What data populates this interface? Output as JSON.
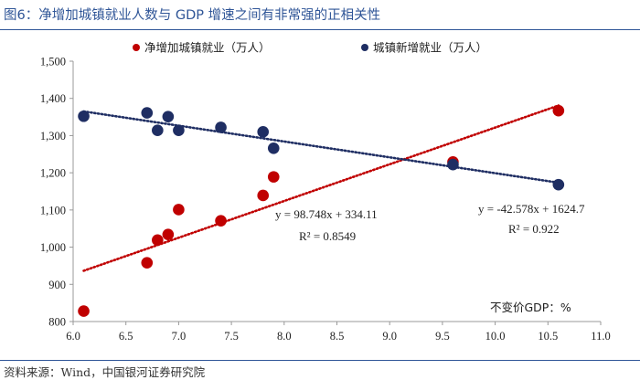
{
  "title": "图6：净增加城镇就业人数与 GDP 增速之间有非常强的正相关性",
  "source": "资料来源：Wind，中国银河证券研究院",
  "chart_data": {
    "type": "scatter",
    "title": "图6：净增加城镇就业人数与 GDP 增速之间有非常强的正相关性",
    "xlabel": "",
    "ylabel": "",
    "xlim": [
      6.0,
      11.0
    ],
    "ylim": [
      800,
      1500
    ],
    "x_ticks": [
      "6.0",
      "6.5",
      "7.0",
      "7.5",
      "8.0",
      "8.5",
      "9.0",
      "9.5",
      "10.0",
      "10.5",
      "11.0"
    ],
    "x_tick_values": [
      6.0,
      6.5,
      7.0,
      7.5,
      8.0,
      8.5,
      9.0,
      9.5,
      10.0,
      10.5,
      11.0
    ],
    "y_ticks": [
      "800",
      "900",
      "1,000",
      "1,100",
      "1,200",
      "1,300",
      "1,400",
      "1,500"
    ],
    "y_tick_values": [
      800,
      900,
      1000,
      1100,
      1200,
      1300,
      1400,
      1500
    ],
    "grid": false,
    "legend_position": "top",
    "note": "不变价GDP：%",
    "series": [
      {
        "name": "净增加城镇就业（万人）",
        "color": "#c00000",
        "x": [
          6.1,
          6.7,
          6.8,
          6.9,
          7.0,
          7.4,
          7.8,
          7.9,
          9.6,
          10.6
        ],
        "y": [
          828,
          958,
          1019,
          1034,
          1101,
          1071,
          1139,
          1189,
          1229,
          1367
        ],
        "trendline": {
          "slope": 98.748,
          "intercept": 334.11,
          "x_range": [
            6.1,
            10.6
          ],
          "color": "#c00000"
        },
        "equation": "y = 98.748x + 334.11",
        "r2": "R² = 0.8549"
      },
      {
        "name": "城镇新增就业（万人）",
        "color": "#1f2e63",
        "x": [
          6.1,
          6.7,
          6.8,
          6.9,
          7.0,
          7.4,
          7.8,
          7.9,
          9.6,
          10.6
        ],
        "y": [
          1352,
          1361,
          1314,
          1351,
          1314,
          1322,
          1310,
          1266,
          1222,
          1168
        ],
        "trendline": {
          "slope": -42.578,
          "intercept": 1624.7,
          "x_range": [
            6.1,
            10.6
          ],
          "color": "#1f2e63"
        },
        "equation": "y = -42.578x + 1624.7",
        "r2": "R² = 0.922"
      }
    ]
  }
}
